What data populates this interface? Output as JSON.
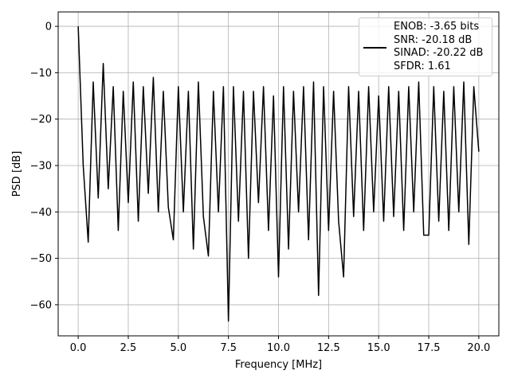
{
  "chart_data": {
    "type": "line",
    "xlabel": "Frequency [MHz]",
    "ylabel": "PSD [dB]",
    "x": [
      0,
      0.25,
      0.5,
      0.75,
      1,
      1.25,
      1.5,
      1.75,
      2,
      2.25,
      2.5,
      2.75,
      3,
      3.25,
      3.5,
      3.75,
      4,
      4.25,
      4.5,
      4.75,
      5,
      5.25,
      5.5,
      5.75,
      6,
      6.25,
      6.5,
      6.75,
      7,
      7.25,
      7.5,
      7.75,
      8,
      8.25,
      8.5,
      8.75,
      9,
      9.25,
      9.5,
      9.75,
      10,
      10.25,
      10.5,
      10.75,
      11,
      11.25,
      11.5,
      11.75,
      12,
      12.25,
      12.5,
      12.75,
      13,
      13.25,
      13.5,
      13.75,
      14,
      14.25,
      14.5,
      14.75,
      15,
      15.25,
      15.5,
      15.75,
      16,
      16.25,
      16.5,
      16.75,
      17,
      17.25,
      17.5,
      17.75,
      18,
      18.25,
      18.5,
      18.75,
      19,
      19.25,
      19.5,
      19.75,
      20
    ],
    "series": [
      {
        "name": "ENOB: -3.65 bits\nSNR: -20.18 dB\nSINAD: -20.22 dB\nSFDR: 1.61",
        "color": "#000000",
        "values": [
          0,
          -30,
          -46.5,
          -12,
          -37,
          -8,
          -35,
          -13,
          -44,
          -14,
          -38,
          -12,
          -42,
          -13,
          -36,
          -11,
          -40,
          -14,
          -39,
          -46,
          -13,
          -40,
          -14,
          -48,
          -12,
          -41,
          -49.5,
          -14,
          -40,
          -13,
          -63.5,
          -13,
          -42,
          -14,
          -50,
          -14,
          -38,
          -13,
          -44,
          -15,
          -54,
          -13,
          -48,
          -14,
          -40,
          -13,
          -46,
          -12,
          -58,
          -13,
          -44,
          -14,
          -42,
          -54,
          -13,
          -41,
          -14,
          -44,
          -13,
          -40,
          -15,
          -42,
          -13,
          -41,
          -14,
          -44,
          -13,
          -40,
          -12,
          -45,
          -45,
          -13,
          -42,
          -14,
          -44,
          -13,
          -40,
          -12,
          -47,
          -13,
          -27
        ]
      }
    ],
    "xlim": [
      -1,
      21
    ],
    "ylim": [
      -66.7,
      3.1
    ],
    "xticks": [
      {
        "value": 0,
        "label": "0.0"
      },
      2.5,
      {
        "value": 5,
        "label": "5.0"
      },
      7.5,
      {
        "value": 10,
        "label": "10.0"
      },
      12.5,
      {
        "value": 15,
        "label": "15.0"
      },
      17.5,
      {
        "value": 20,
        "label": "20.0"
      }
    ],
    "yticks": [
      0,
      {
        "value": -10,
        "label": "−10"
      },
      {
        "value": -20,
        "label": "−20"
      },
      {
        "value": -30,
        "label": "−30"
      },
      {
        "value": -40,
        "label": "−40"
      },
      {
        "value": -50,
        "label": "−50"
      },
      {
        "value": -60,
        "label": "−60"
      }
    ],
    "grid": true,
    "legend": "upper right"
  }
}
